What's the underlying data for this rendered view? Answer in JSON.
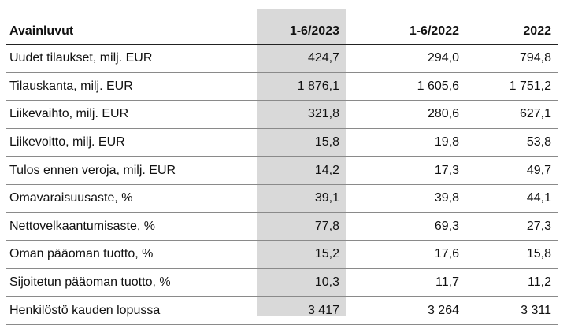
{
  "table": {
    "headers": [
      "Avainluvut",
      "1-6/2023",
      "1-6/2022",
      "2022"
    ],
    "rows": [
      [
        "Uudet tilaukset, milj. EUR",
        "424,7",
        "294,0",
        "794,8"
      ],
      [
        "Tilauskanta, milj. EUR",
        "1 876,1",
        "1 605,6",
        "1 751,2"
      ],
      [
        "Liikevaihto, milj. EUR",
        "321,8",
        "280,6",
        "627,1"
      ],
      [
        "Liikevoitto, milj. EUR",
        "15,8",
        "19,8",
        "53,8"
      ],
      [
        "Tulos ennen veroja, milj. EUR",
        "14,2",
        "17,3",
        "49,7"
      ],
      [
        "Omavaraisuusaste, %",
        "39,1",
        "39,8",
        "44,1"
      ],
      [
        "Nettovelkaantumisaste, %",
        "77,8",
        "69,3",
        "27,3"
      ],
      [
        "Oman pääoman tuotto, %",
        "15,2",
        "17,6",
        "15,8"
      ],
      [
        "Sijoitetun pääoman tuotto, %",
        "10,3",
        "11,7",
        "11,2"
      ],
      [
        "Henkilöstö kauden lopussa",
        "3 417",
        "3 264",
        "3 311"
      ]
    ]
  }
}
